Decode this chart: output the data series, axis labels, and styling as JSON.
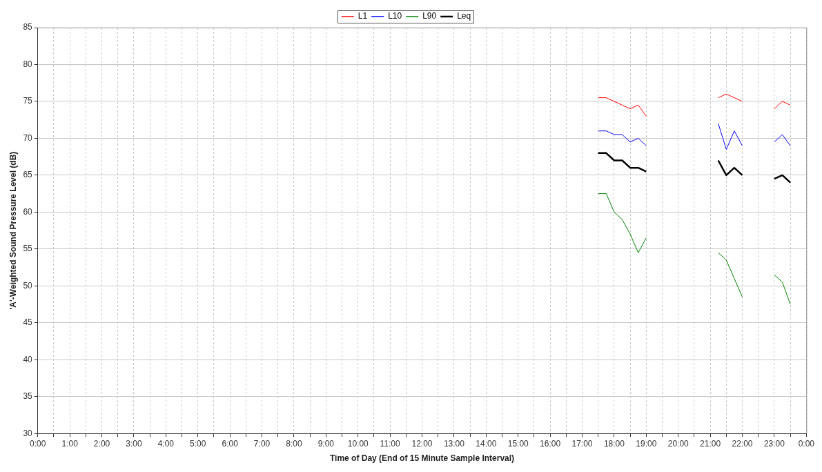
{
  "chart_data": {
    "type": "line",
    "xlabel": "Time of Day (End of 15 Minute Sample Interval)",
    "ylabel": "'A'-Weighted Sound Pressure Level (dB)",
    "x": [
      17.5,
      17.75,
      18,
      18.25,
      18.5,
      18.75,
      19,
      19.25,
      21.25,
      21.5,
      21.75,
      22,
      22.25,
      23,
      23.25,
      23.5
    ],
    "series": [
      {
        "name": "L1",
        "color": "#ff0000",
        "values": [
          75.5,
          75.5,
          75,
          74.5,
          74,
          74.5,
          73,
          null,
          75.5,
          76,
          75.5,
          75,
          null,
          74,
          75,
          74.5
        ]
      },
      {
        "name": "L10",
        "color": "#0000ff",
        "values": [
          71,
          71,
          70.5,
          70.5,
          69.5,
          70,
          69,
          null,
          72,
          68.5,
          71,
          69,
          null,
          69.5,
          70.5,
          69
        ]
      },
      {
        "name": "L90",
        "color": "#008000",
        "values": [
          62.5,
          62.5,
          60,
          59,
          57,
          54.5,
          56.5,
          null,
          54.5,
          53.5,
          51,
          48.5,
          null,
          51.5,
          50.5,
          47.5
        ]
      },
      {
        "name": "Leq",
        "color": "#000000",
        "values": [
          68,
          68,
          67,
          67,
          66,
          66,
          65.5,
          null,
          67,
          65,
          66,
          65,
          null,
          64.5,
          65,
          64
        ]
      }
    ],
    "xlim": [
      0,
      24
    ],
    "xticks": [
      {
        "value": 0,
        "label": "0:00"
      },
      {
        "value": 0.5,
        "label": null
      },
      {
        "value": 1,
        "label": "1:00"
      },
      {
        "value": 1.5,
        "label": null
      },
      {
        "value": 2,
        "label": "2:00"
      },
      {
        "value": 2.5,
        "label": null
      },
      {
        "value": 3,
        "label": "3:00"
      },
      {
        "value": 3.5,
        "label": null
      },
      {
        "value": 4,
        "label": "4:00"
      },
      {
        "value": 4.5,
        "label": null
      },
      {
        "value": 5,
        "label": "5:00"
      },
      {
        "value": 5.5,
        "label": null
      },
      {
        "value": 6,
        "label": "6:00"
      },
      {
        "value": 6.5,
        "label": null
      },
      {
        "value": 7,
        "label": "7:00"
      },
      {
        "value": 7.5,
        "label": null
      },
      {
        "value": 8,
        "label": "8:00"
      },
      {
        "value": 8.5,
        "label": null
      },
      {
        "value": 9,
        "label": "9:00"
      },
      {
        "value": 9.5,
        "label": null
      },
      {
        "value": 10,
        "label": "10:00"
      },
      {
        "value": 10.5,
        "label": null
      },
      {
        "value": 11,
        "label": "11:00"
      },
      {
        "value": 11.5,
        "label": null
      },
      {
        "value": 12,
        "label": "12:00"
      },
      {
        "value": 12.5,
        "label": null
      },
      {
        "value": 13,
        "label": "13:00"
      },
      {
        "value": 13.5,
        "label": null
      },
      {
        "value": 14,
        "label": "14:00"
      },
      {
        "value": 14.5,
        "label": null
      },
      {
        "value": 15,
        "label": "15:00"
      },
      {
        "value": 15.5,
        "label": null
      },
      {
        "value": 16,
        "label": "16:00"
      },
      {
        "value": 16.5,
        "label": null
      },
      {
        "value": 17,
        "label": "17:00"
      },
      {
        "value": 17.5,
        "label": null
      },
      {
        "value": 18,
        "label": "18:00"
      },
      {
        "value": 18.5,
        "label": null
      },
      {
        "value": 19,
        "label": "19:00"
      },
      {
        "value": 19.5,
        "label": null
      },
      {
        "value": 20,
        "label": "20:00"
      },
      {
        "value": 20.5,
        "label": null
      },
      {
        "value": 21,
        "label": "21:00"
      },
      {
        "value": 21.5,
        "label": null
      },
      {
        "value": 22,
        "label": "22:00"
      },
      {
        "value": 22.5,
        "label": null
      },
      {
        "value": 23,
        "label": "23:00"
      },
      {
        "value": 23.5,
        "label": null
      },
      {
        "value": 24,
        "label": "0:00"
      }
    ],
    "ylim": [
      30,
      85
    ],
    "yticks": [
      30,
      35,
      40,
      45,
      50,
      55,
      60,
      65,
      70,
      75,
      80,
      85
    ],
    "grid": true,
    "legend": "top",
    "marker": "none",
    "line_style": "solid"
  }
}
